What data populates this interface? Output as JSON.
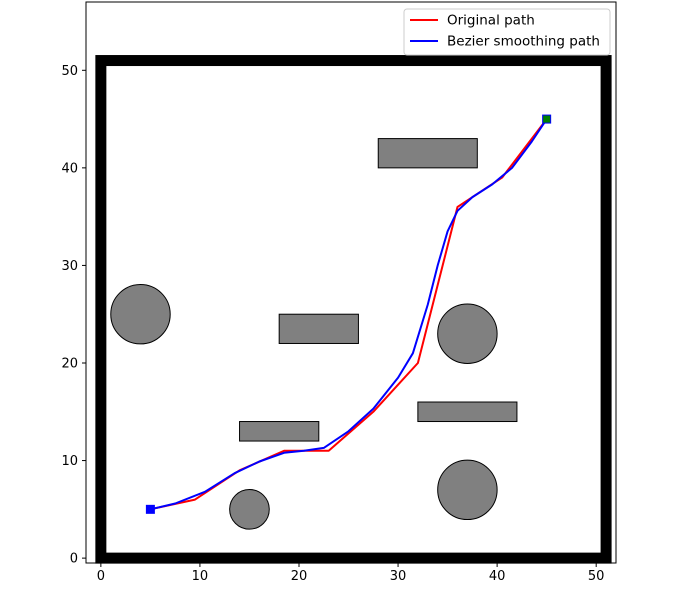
{
  "chart_data": {
    "type": "line",
    "title": "",
    "xlabel": "",
    "ylabel": "",
    "xlim": [
      -1.5,
      52
    ],
    "ylim": [
      -0.5,
      57
    ],
    "x_ticks": [
      0,
      10,
      20,
      30,
      40,
      50
    ],
    "y_ticks": [
      0,
      10,
      20,
      30,
      40,
      50
    ],
    "x_tick_labels": [
      "0",
      "10",
      "20",
      "30",
      "40",
      "50"
    ],
    "y_tick_labels": [
      "0",
      "10",
      "20",
      "30",
      "40",
      "50"
    ],
    "grid": false,
    "legend_position": "top-right",
    "boundary": {
      "x": [
        0,
        51
      ],
      "y": [
        0,
        51
      ],
      "color": "#000000"
    },
    "obstacles": {
      "fill": "#808080",
      "stroke": "#000000",
      "rectangles": [
        {
          "x0": 28,
          "y0": 40,
          "x1": 38,
          "y1": 43
        },
        {
          "x0": 18,
          "y0": 22,
          "x1": 26,
          "y1": 25
        },
        {
          "x0": 14,
          "y0": 12,
          "x1": 22,
          "y1": 14
        },
        {
          "x0": 32,
          "y0": 14,
          "x1": 42,
          "y1": 16
        }
      ],
      "circles": [
        {
          "cx": 4,
          "cy": 25,
          "r": 3
        },
        {
          "cx": 37,
          "cy": 23,
          "r": 3
        },
        {
          "cx": 15,
          "cy": 5,
          "r": 2
        },
        {
          "cx": 37,
          "cy": 7,
          "r": 3
        }
      ]
    },
    "series": [
      {
        "name": "Original path",
        "color": "#ff0000",
        "x": [
          5,
          9.5,
          14,
          18.5,
          23,
          27.5,
          32,
          36,
          40.5,
          45
        ],
        "y": [
          5,
          6,
          9,
          11,
          11,
          15,
          20,
          36,
          39,
          45
        ]
      },
      {
        "name": "Bezier smoothing path",
        "color": "#0000ff",
        "x": [
          5,
          7.5,
          10.5,
          13.5,
          16,
          18.5,
          20.5,
          22.5,
          25,
          27.5,
          30,
          31.5,
          33,
          34,
          35,
          36,
          37.5,
          39.5,
          41.5,
          43.5,
          45
        ],
        "y": [
          5,
          5.6,
          6.8,
          8.7,
          9.9,
          10.8,
          11,
          11.3,
          13,
          15.3,
          18.5,
          21,
          26,
          30,
          33.5,
          35.6,
          37,
          38.3,
          40,
          42.7,
          45
        ]
      }
    ],
    "markers": [
      {
        "kind": "start",
        "x": 5,
        "y": 5,
        "color": "#0000ff"
      },
      {
        "kind": "goal",
        "x": 45,
        "y": 45,
        "color": "#008000"
      }
    ]
  }
}
